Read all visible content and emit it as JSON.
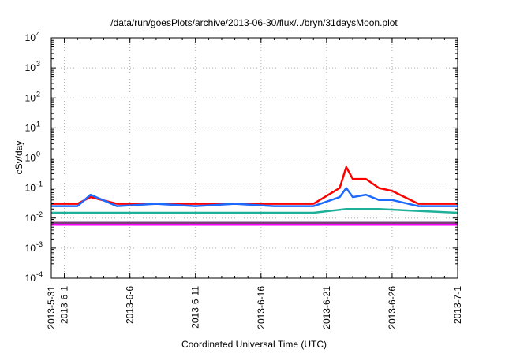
{
  "chart_data": {
    "type": "line",
    "title": "/data/run/goesPlots/archive/2013-06-30/flux/../bryn/31daysMoon.plot",
    "xlabel": "Coordinated Universal Time (UTC)",
    "ylabel": "cSv/day",
    "y_scale": "log",
    "ylim": [
      0.0001,
      10000
    ],
    "xlim": [
      "2013-05-31",
      "2013-07-01"
    ],
    "x_ticks": [
      "2013-5-31",
      "2013-6-1",
      "2013-6-6",
      "2013-6-11",
      "2013-6-16",
      "2013-6-21",
      "2013-6-26",
      "2013-7-1"
    ],
    "x_tick_dates": [
      "2013-05-31",
      "2013-06-01",
      "2013-06-06",
      "2013-06-11",
      "2013-06-16",
      "2013-06-21",
      "2013-06-26",
      "2013-07-01"
    ],
    "y_ticks": [
      {
        "base": "10",
        "exp": "-4",
        "value": 0.0001
      },
      {
        "base": "10",
        "exp": "-3",
        "value": 0.001
      },
      {
        "base": "10",
        "exp": "-2",
        "value": 0.01
      },
      {
        "base": "10",
        "exp": "-1",
        "value": 0.1
      },
      {
        "base": "10",
        "exp": "0",
        "value": 1
      },
      {
        "base": "10",
        "exp": "1",
        "value": 10
      },
      {
        "base": "10",
        "exp": "2",
        "value": 100
      },
      {
        "base": "10",
        "exp": "3",
        "value": 1000
      },
      {
        "base": "10",
        "exp": "4",
        "value": 10000
      }
    ],
    "grid": true,
    "legend": "none",
    "series": [
      {
        "color": "#ff0000",
        "x": [
          "2013-05-31",
          "2013-06-02",
          "2013-06-03",
          "2013-06-05",
          "2013-06-08",
          "2013-06-11",
          "2013-06-14",
          "2013-06-17",
          "2013-06-20",
          "2013-06-22",
          "2013-06-22T12",
          "2013-06-23",
          "2013-06-24",
          "2013-06-25",
          "2013-06-26",
          "2013-06-28",
          "2013-07-01"
        ],
        "y": [
          0.03,
          0.03,
          0.05,
          0.03,
          0.03,
          0.03,
          0.03,
          0.03,
          0.03,
          0.1,
          0.5,
          0.2,
          0.2,
          0.1,
          0.08,
          0.03,
          0.03
        ]
      },
      {
        "color": "#1e6aff",
        "x": [
          "2013-05-31",
          "2013-06-02",
          "2013-06-03",
          "2013-06-05",
          "2013-06-08",
          "2013-06-11",
          "2013-06-14",
          "2013-06-17",
          "2013-06-20",
          "2013-06-22",
          "2013-06-22T12",
          "2013-06-23",
          "2013-06-24",
          "2013-06-25",
          "2013-06-26",
          "2013-06-28",
          "2013-07-01"
        ],
        "y": [
          0.025,
          0.025,
          0.06,
          0.025,
          0.03,
          0.025,
          0.03,
          0.025,
          0.025,
          0.05,
          0.1,
          0.05,
          0.06,
          0.04,
          0.04,
          0.025,
          0.025
        ]
      },
      {
        "color": "#1fb09a",
        "x": [
          "2013-05-31",
          "2013-06-05",
          "2013-06-10",
          "2013-06-15",
          "2013-06-20",
          "2013-06-22T12",
          "2013-06-25",
          "2013-07-01"
        ],
        "y": [
          0.015,
          0.015,
          0.015,
          0.015,
          0.015,
          0.02,
          0.02,
          0.015
        ]
      },
      {
        "color": "#7a3f7a",
        "x": [
          "2013-05-31",
          "2013-06-05",
          "2013-06-10",
          "2013-06-15",
          "2013-06-20",
          "2013-06-25",
          "2013-07-01"
        ],
        "y": [
          0.007,
          0.007,
          0.007,
          0.007,
          0.007,
          0.007,
          0.007
        ]
      },
      {
        "color": "#ff00ff",
        "x": [
          "2013-05-31",
          "2013-06-05",
          "2013-06-10",
          "2013-06-15",
          "2013-06-20",
          "2013-06-25",
          "2013-07-01"
        ],
        "y": [
          0.006,
          0.006,
          0.006,
          0.006,
          0.006,
          0.006,
          0.006
        ]
      }
    ]
  }
}
